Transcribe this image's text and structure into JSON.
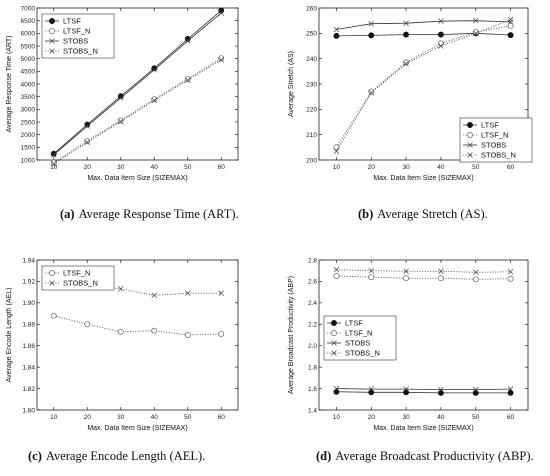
{
  "chart_data": [
    {
      "type": "line",
      "caption_tag": "(a)",
      "caption_text": "Average Response Time (ART).",
      "xlabel": "Max. Data Item Size (SIZEMAX)",
      "ylabel": "Average Response Time (ART)",
      "x": [
        10,
        20,
        30,
        40,
        50,
        60
      ],
      "xlim": [
        5,
        65
      ],
      "xticks": [
        10,
        20,
        30,
        40,
        50,
        60
      ],
      "ylim": [
        1000,
        7000
      ],
      "yticks": [
        1000,
        1500,
        2000,
        2500,
        3000,
        3500,
        4000,
        4500,
        5000,
        5500,
        6000,
        6500,
        7000
      ],
      "legend": "top-left",
      "series": [
        {
          "name": "LTSF",
          "marker": "filled-circle",
          "style": "solid",
          "values": [
            1250,
            2400,
            3520,
            4620,
            5780,
            6900
          ]
        },
        {
          "name": "LTSF_N",
          "marker": "open-circle",
          "style": "dotted",
          "values": [
            900,
            1750,
            2560,
            3400,
            4200,
            5020
          ]
        },
        {
          "name": "STOBS",
          "marker": "cross",
          "style": "solid",
          "values": [
            1200,
            2340,
            3450,
            4560,
            5700,
            6800
          ]
        },
        {
          "name": "STOBS_N",
          "marker": "cross",
          "style": "dotted",
          "values": [
            850,
            1700,
            2520,
            3350,
            4150,
            4950
          ]
        }
      ]
    },
    {
      "type": "line",
      "caption_tag": "(b)",
      "caption_text": "Average Stretch (AS).",
      "xlabel": "Max. Data Item Size (SIZEMAX)",
      "ylabel": "Average Stretch (AS)",
      "x": [
        10,
        20,
        30,
        40,
        50,
        60
      ],
      "xlim": [
        5,
        65
      ],
      "xticks": [
        10,
        20,
        30,
        40,
        50,
        60
      ],
      "ylim": [
        200,
        260
      ],
      "yticks": [
        200,
        210,
        220,
        230,
        240,
        250,
        260
      ],
      "legend": "bottom-right",
      "series": [
        {
          "name": "LTSF",
          "marker": "filled-circle",
          "style": "solid",
          "values": [
            249,
            249.2,
            249.5,
            249.5,
            250,
            249.3
          ]
        },
        {
          "name": "LTSF_N",
          "marker": "open-circle",
          "style": "dotted",
          "values": [
            205,
            227,
            238.5,
            246,
            250.5,
            253
          ]
        },
        {
          "name": "STOBS",
          "marker": "cross",
          "style": "solid",
          "values": [
            251.5,
            253.8,
            254,
            254.8,
            255,
            254.5
          ]
        },
        {
          "name": "STOBS_N",
          "marker": "cross",
          "style": "dotted",
          "values": [
            203.5,
            226.5,
            238,
            245,
            250,
            255.5
          ]
        }
      ]
    },
    {
      "type": "line",
      "caption_tag": "(c)",
      "caption_text": "Average Encode Length (AEL).",
      "xlabel": "Max. Data Item Size (SIZEMAX)",
      "ylabel": "Average Encode Length (AEL)",
      "x": [
        10,
        20,
        30,
        40,
        50,
        60
      ],
      "xlim": [
        5,
        65
      ],
      "xticks": [
        10,
        20,
        30,
        40,
        50,
        60
      ],
      "ylim": [
        1.8,
        1.94
      ],
      "yticks": [
        1.8,
        1.82,
        1.84,
        1.86,
        1.88,
        1.9,
        1.92,
        1.94
      ],
      "ytick_decimals": 2,
      "legend": "top-left",
      "series": [
        {
          "name": "LTSF_N",
          "marker": "open-circle",
          "style": "dotted",
          "values": [
            1.888,
            1.88,
            1.873,
            1.874,
            1.87,
            1.871
          ]
        },
        {
          "name": "STOBS_N",
          "marker": "cross",
          "style": "dotted",
          "values": [
            1.921,
            1.917,
            1.913,
            1.907,
            1.909,
            1.909
          ]
        }
      ]
    },
    {
      "type": "line",
      "caption_tag": "(d)",
      "caption_text": "Average Broadcast Productivity (ABP).",
      "xlabel": "Max. Data Item Size (SIZEMAX)",
      "ylabel": "Average Broadcast Productivity (ABP)",
      "x": [
        10,
        20,
        30,
        40,
        50,
        60
      ],
      "xlim": [
        5,
        65
      ],
      "xticks": [
        10,
        20,
        30,
        40,
        50,
        60
      ],
      "ylim": [
        1.4,
        2.8
      ],
      "yticks": [
        1.4,
        1.6,
        1.8,
        2.0,
        2.2,
        2.4,
        2.6,
        2.8
      ],
      "ytick_decimals": 1,
      "legend": "middle-left",
      "series": [
        {
          "name": "LTSF",
          "marker": "filled-circle",
          "style": "solid",
          "values": [
            1.57,
            1.565,
            1.565,
            1.56,
            1.56,
            1.56
          ]
        },
        {
          "name": "LTSF_N",
          "marker": "open-circle",
          "style": "dotted",
          "values": [
            2.65,
            2.64,
            2.63,
            2.63,
            2.62,
            2.625
          ]
        },
        {
          "name": "STOBS",
          "marker": "cross",
          "style": "solid",
          "values": [
            1.6,
            1.595,
            1.595,
            1.59,
            1.59,
            1.595
          ]
        },
        {
          "name": "STOBS_N",
          "marker": "cross",
          "style": "dotted",
          "values": [
            2.71,
            2.7,
            2.695,
            2.695,
            2.685,
            2.69
          ]
        }
      ]
    }
  ]
}
